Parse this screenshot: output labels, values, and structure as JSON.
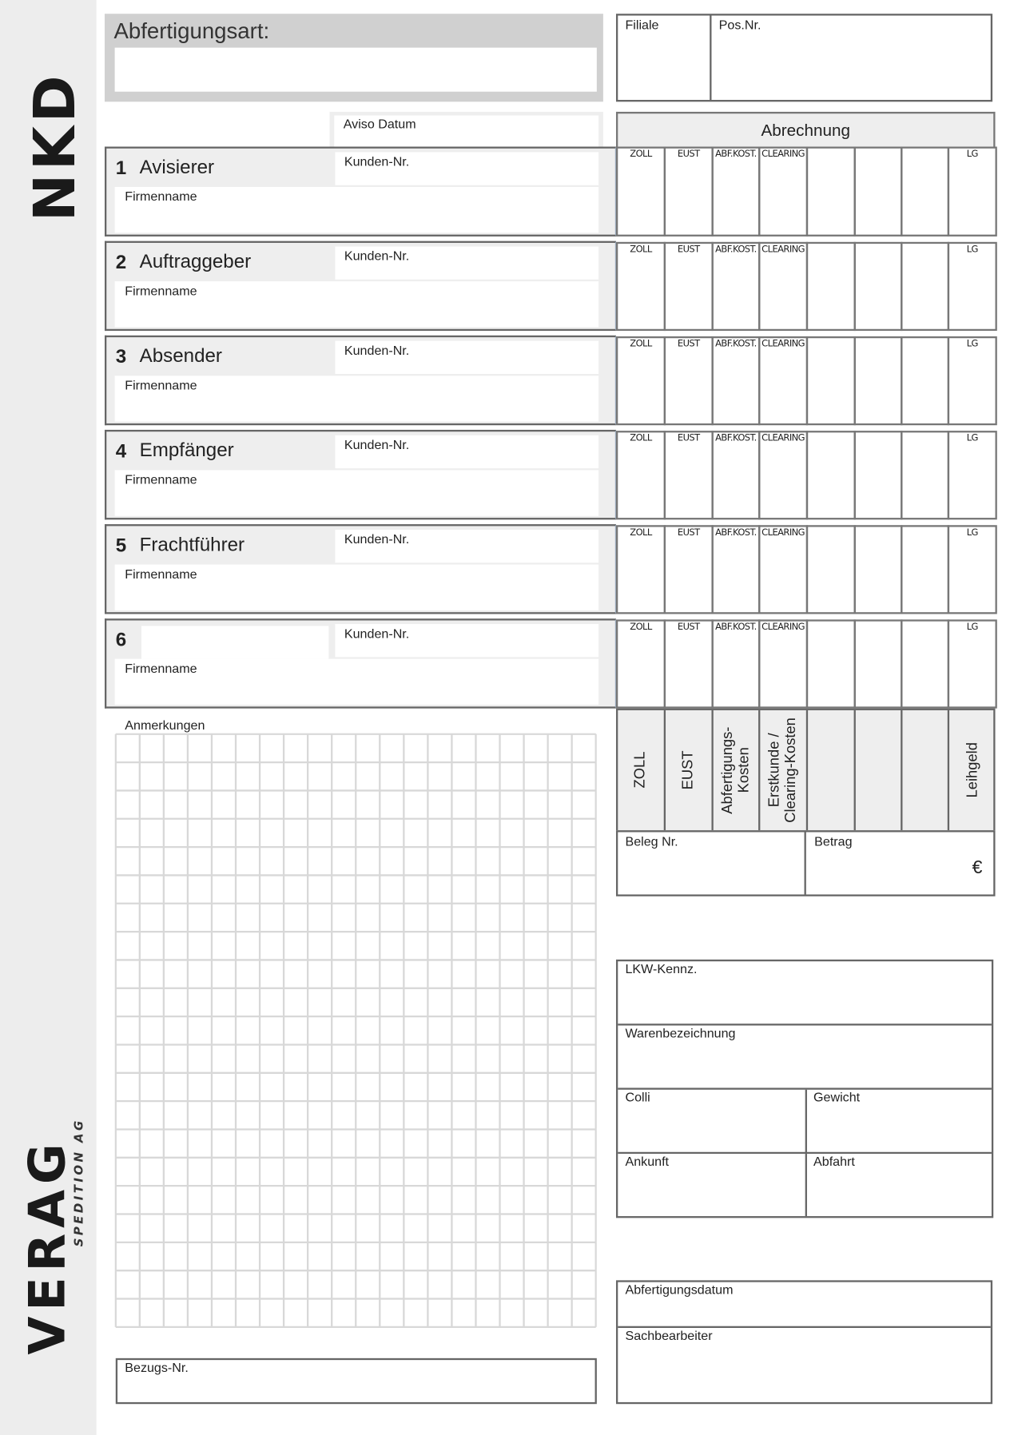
{
  "logos": {
    "top": "NKD",
    "bottom_main": "VERAG",
    "bottom_sub": "SPEDITION AG"
  },
  "header": {
    "abfertigungsart_label": "Abfertigungsart:",
    "filiale_label": "Filiale",
    "posnr_label": "Pos.Nr.",
    "aviso_label": "Aviso Datum",
    "abrechnung_label": "Abrechnung"
  },
  "sections": [
    {
      "number": "1",
      "title": "Avisierer",
      "kunden_label": "Kunden-Nr.",
      "firma_label": "Firmenname"
    },
    {
      "number": "2",
      "title": "Auftraggeber",
      "kunden_label": "Kunden-Nr.",
      "firma_label": "Firmenname"
    },
    {
      "number": "3",
      "title": "Absender",
      "kunden_label": "Kunden-Nr.",
      "firma_label": "Firmenname"
    },
    {
      "number": "4",
      "title": "Empfänger",
      "kunden_label": "Kunden-Nr.",
      "firma_label": "Firmenname"
    },
    {
      "number": "5",
      "title": "Frachtführer",
      "kunden_label": "Kunden-Nr.",
      "firma_label": "Firmenname"
    },
    {
      "number": "6",
      "title": "",
      "kunden_label": "Kunden-Nr.",
      "firma_label": "Firmenname"
    }
  ],
  "charge_columns": [
    "ZOLL",
    "EUST",
    "ABF.KOST.",
    "CLEARING",
    "",
    "",
    "",
    "LG"
  ],
  "summary_columns": [
    "ZOLL",
    "EUST",
    "Abfertigungs-\nKosten",
    "Erstkunde /\nClearing-Kosten",
    "",
    "",
    "",
    "Leihgeld"
  ],
  "beleg_label": "Beleg Nr.",
  "betrag_label": "Betrag",
  "currency": "€",
  "anmerkungen_label": "Anmerkungen",
  "bezugs_label": "Bezugs-Nr.",
  "transport": {
    "lkw": "LKW-Kennz.",
    "waren": "Warenbezeichnung",
    "colli": "Colli",
    "gewicht": "Gewicht",
    "ankunft": "Ankunft",
    "abfahrt": "Abfahrt"
  },
  "footer": {
    "datum": "Abfertigungsdatum",
    "sachbearbeiter": "Sachbearbeiter"
  }
}
